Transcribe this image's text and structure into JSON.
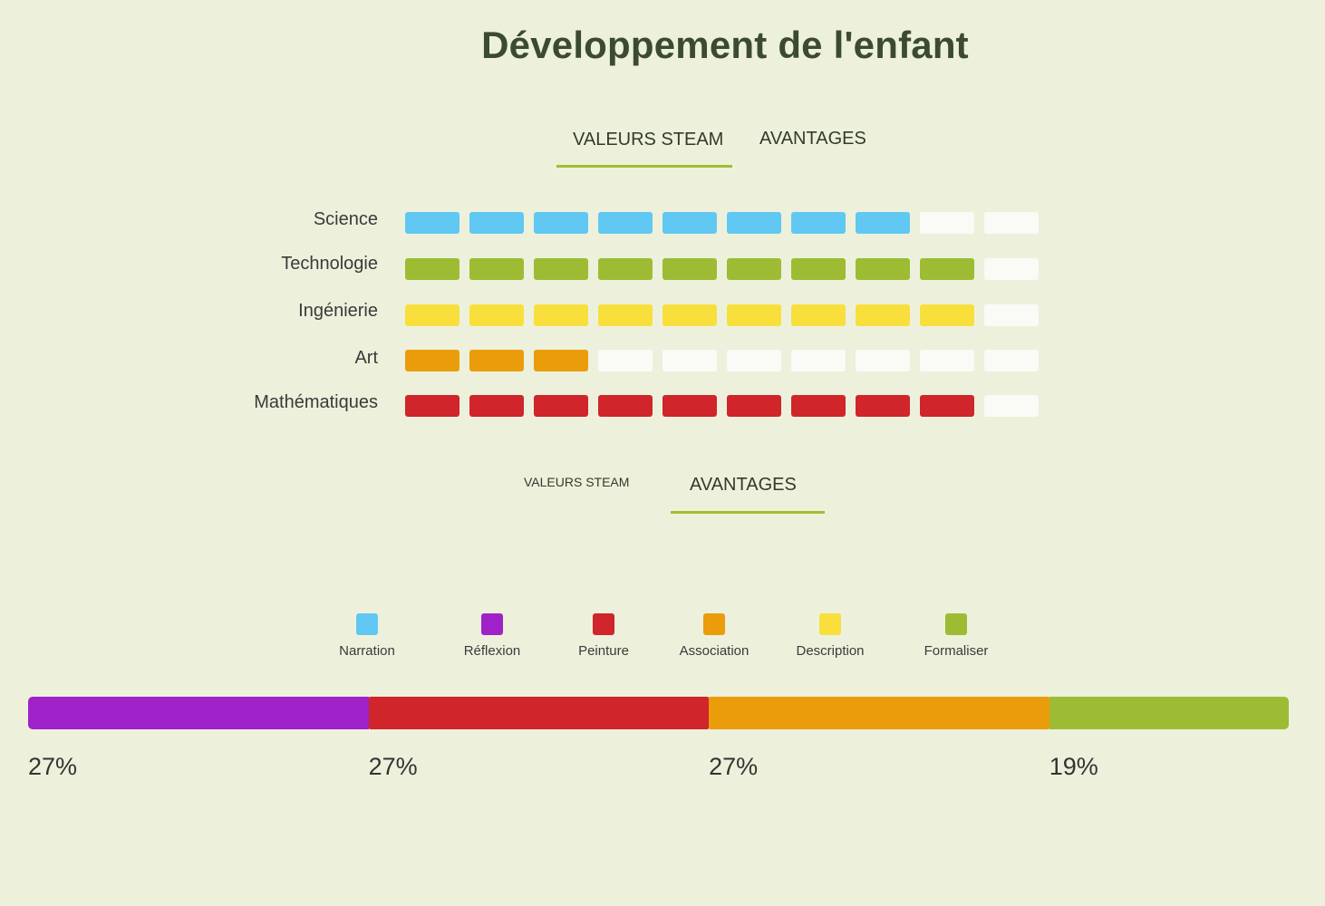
{
  "title": "Développement de l'enfant",
  "tabs_top": [
    {
      "label": "VALEURS STEAM",
      "active": true
    },
    {
      "label": "AVANTAGES",
      "active": false
    }
  ],
  "tabs_bottom": [
    {
      "label": "VALEURS STEAM",
      "active": false
    },
    {
      "label": "AVANTAGES",
      "active": true
    }
  ],
  "colors": {
    "accent": "#9fbe30",
    "empty": "#fafaf6"
  },
  "chart_data": [
    {
      "type": "bar",
      "max": 10,
      "categories": [
        "Science",
        "Technologie",
        "Ingénierie",
        "Art",
        "Mathématiques"
      ],
      "values": [
        8,
        9,
        9,
        3,
        9
      ],
      "colors": [
        "#60c8f2",
        "#9dbc33",
        "#f8df3c",
        "#eb9c0a",
        "#cf252b"
      ]
    },
    {
      "type": "bar",
      "legend": [
        {
          "label": "Narration",
          "color": "#60c8f2"
        },
        {
          "label": "Réflexion",
          "color": "#9f22c8"
        },
        {
          "label": "Peinture",
          "color": "#cf252b"
        },
        {
          "label": "Association",
          "color": "#eb9c0a"
        },
        {
          "label": "Description",
          "color": "#f8df3c"
        },
        {
          "label": "Formaliser",
          "color": "#9dbc33"
        }
      ],
      "segments": [
        {
          "value": 27,
          "label": "27%",
          "color": "#9f22c8"
        },
        {
          "value": 27,
          "label": "27%",
          "color": "#cf252b"
        },
        {
          "value": 27,
          "label": "27%",
          "color": "#eb9c0a"
        },
        {
          "value": 19,
          "label": "19%",
          "color": "#9dbc33"
        }
      ]
    }
  ]
}
